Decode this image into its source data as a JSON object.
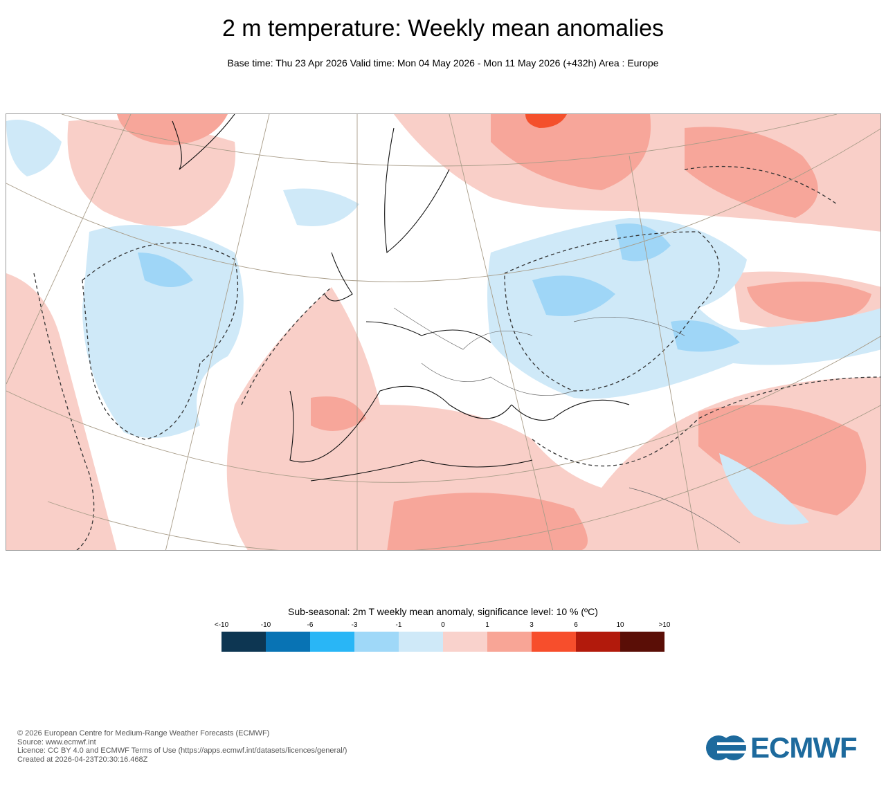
{
  "header": {
    "title": "2 m temperature: Weekly mean anomalies",
    "subtitle": "Base time: Thu 23 Apr 2026 Valid time: Mon 04 May 2026 - Mon 11 May 2026 (+432h) Area : Europe"
  },
  "map": {
    "area": "Europe",
    "colors": {
      "warm_light": "#f9cfc8",
      "warm_mid": "#f7a69a",
      "warm_strong": "#f4502c",
      "cool_light": "#cfe9f8",
      "cool_mid": "#9fd6f7"
    }
  },
  "legend": {
    "title": "Sub-seasonal: 2m T weekly mean anomaly, significance level: 10 % (ºC)",
    "labels": [
      "<-10",
      "-10",
      "-6",
      "-3",
      "-1",
      "0",
      "1",
      "3",
      "6",
      "10",
      ">10"
    ],
    "colors": [
      "#0d3652",
      "#0873b4",
      "#29b6f6",
      "#9fd8f8",
      "#cfe9f8",
      "#f9d2cc",
      "#f8a596",
      "#f74e2c",
      "#b21a0c",
      "#5a0e06"
    ]
  },
  "footer": {
    "lines": [
      "© 2026 European Centre for Medium-Range Weather Forecasts (ECMWF)",
      "Source: www.ecmwf.int",
      "Licence: CC BY 4.0 and ECMWF Terms of Use (https://apps.ecmwf.int/datasets/licences/general/)",
      "Created at 2026-04-23T20:30:16.468Z"
    ],
    "logo": "ECMWF"
  }
}
